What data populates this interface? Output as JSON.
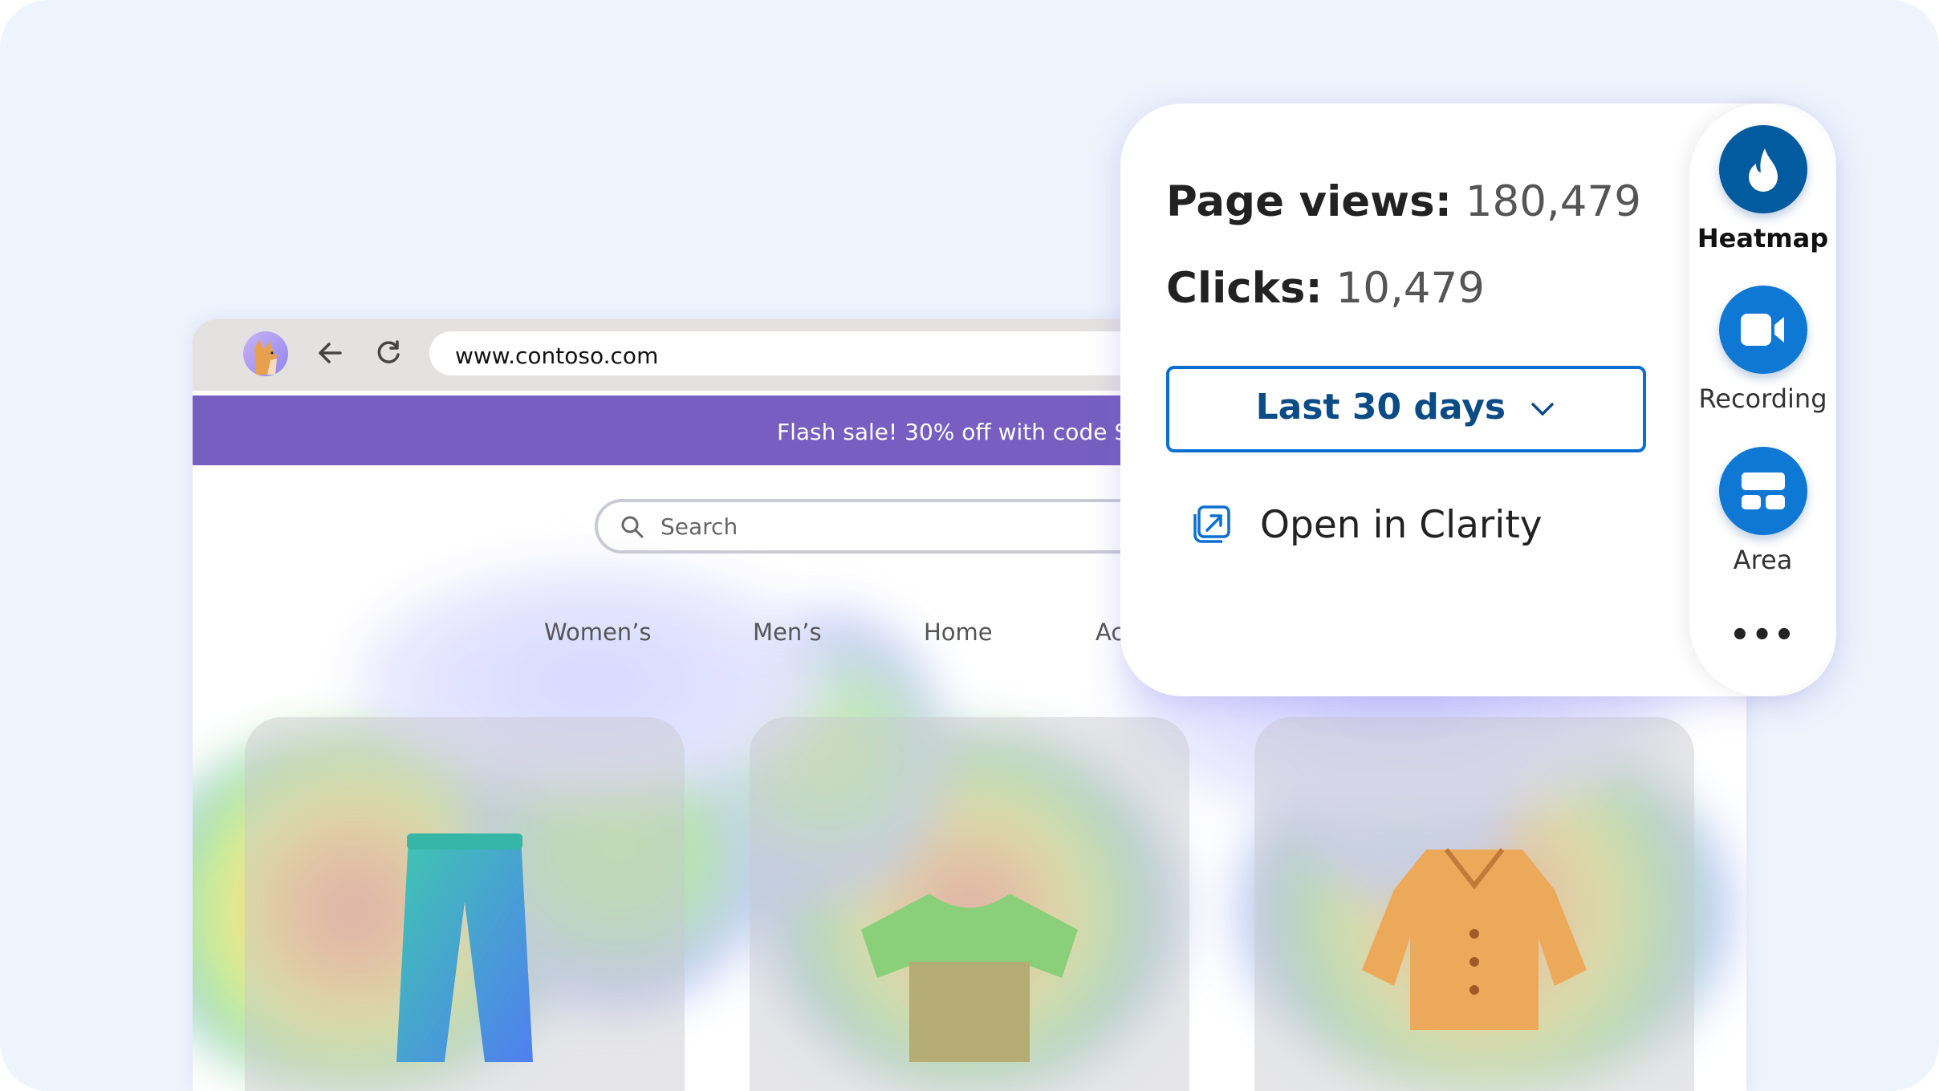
{
  "browser": {
    "url": "www.contoso.com",
    "avatar": "fox-avatar",
    "back_icon": "arrow-left-icon",
    "refresh_icon": "refresh-icon"
  },
  "site": {
    "banner": "Flash sale! 30% off with code S/",
    "search_placeholder": "Search",
    "nav": [
      "Women’s",
      "Men’s",
      "Home",
      "Ac"
    ],
    "products": [
      "jeans",
      "t-shirt",
      "jacket"
    ]
  },
  "panel": {
    "page_views_label": "Page views:",
    "page_views_value": "180,479",
    "clicks_label": "Clicks:",
    "clicks_value": "10,479",
    "date_range": "Last 30 days",
    "open_label": "Open in Clarity"
  },
  "rail": {
    "items": [
      {
        "label": "Heatmap",
        "icon": "flame-icon",
        "active": true,
        "color": "#025a9f"
      },
      {
        "label": "Recording",
        "icon": "video-camera-icon",
        "active": false,
        "color": "#0f78d4"
      },
      {
        "label": "Area",
        "icon": "area-layout-icon",
        "active": false,
        "color": "#0f78d4"
      }
    ],
    "more": "•••"
  },
  "colors": {
    "accent": "#0a6fd0",
    "banner": "#775ec0",
    "background": "#eef4fc"
  }
}
